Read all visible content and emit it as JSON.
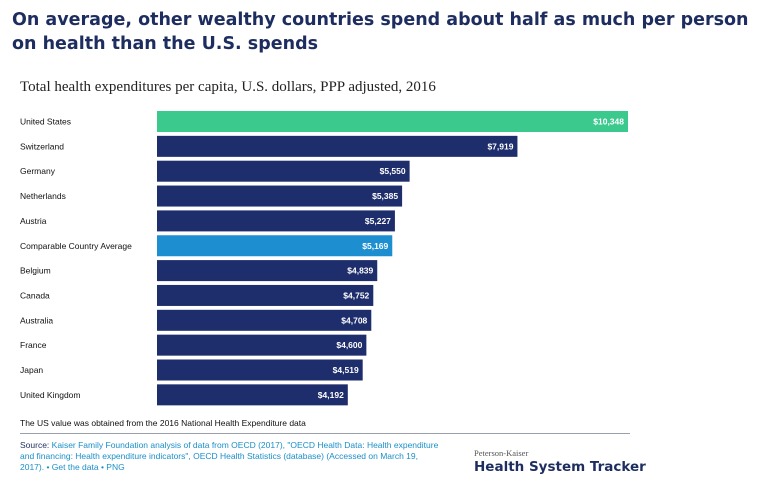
{
  "headline": "On average, other wealthy countries spend about half as much per person on health than the U.S. spends",
  "footnote": "The US value was obtained from the 2016 National Health Expenditure data",
  "source": {
    "label": "Source: ",
    "text": "Kaiser Family Foundation analysis of data from OECD (2017), \"OECD Health Data: Health expenditure and financing: Health expenditure indicators\", OECD Health Statistics (database) (Accessed on March 19, 2017). • Get the data • PNG"
  },
  "brand": {
    "small": "Peterson-Kaiser",
    "large": "Health System Tracker"
  },
  "colors": {
    "us_bar": "#3cc98e",
    "average_bar": "#1d8fd0",
    "country_bar": "#1e2d6b"
  },
  "chart_data": {
    "type": "bar",
    "orientation": "horizontal",
    "title": "Total health expenditures per capita, U.S. dollars, PPP adjusted, 2016",
    "categories": [
      "United States",
      "Switzerland",
      "Germany",
      "Netherlands",
      "Austria",
      "Comparable Country Average",
      "Belgium",
      "Canada",
      "Australia",
      "France",
      "Japan",
      "United Kingdom"
    ],
    "values": [
      10348,
      7919,
      5550,
      5385,
      5227,
      5169,
      4839,
      4752,
      4708,
      4600,
      4519,
      4192
    ],
    "value_labels": [
      "$10,348",
      "$7,919",
      "$5,550",
      "$5,385",
      "$5,227",
      "$5,169",
      "$4,839",
      "$4,752",
      "$4,708",
      "$4,600",
      "$4,519",
      "$4,192"
    ],
    "bar_color_keys": [
      "us_bar",
      "country_bar",
      "country_bar",
      "country_bar",
      "country_bar",
      "average_bar",
      "country_bar",
      "country_bar",
      "country_bar",
      "country_bar",
      "country_bar",
      "country_bar"
    ],
    "xlim": [
      0,
      10348
    ],
    "grid": false,
    "legend": "none"
  }
}
